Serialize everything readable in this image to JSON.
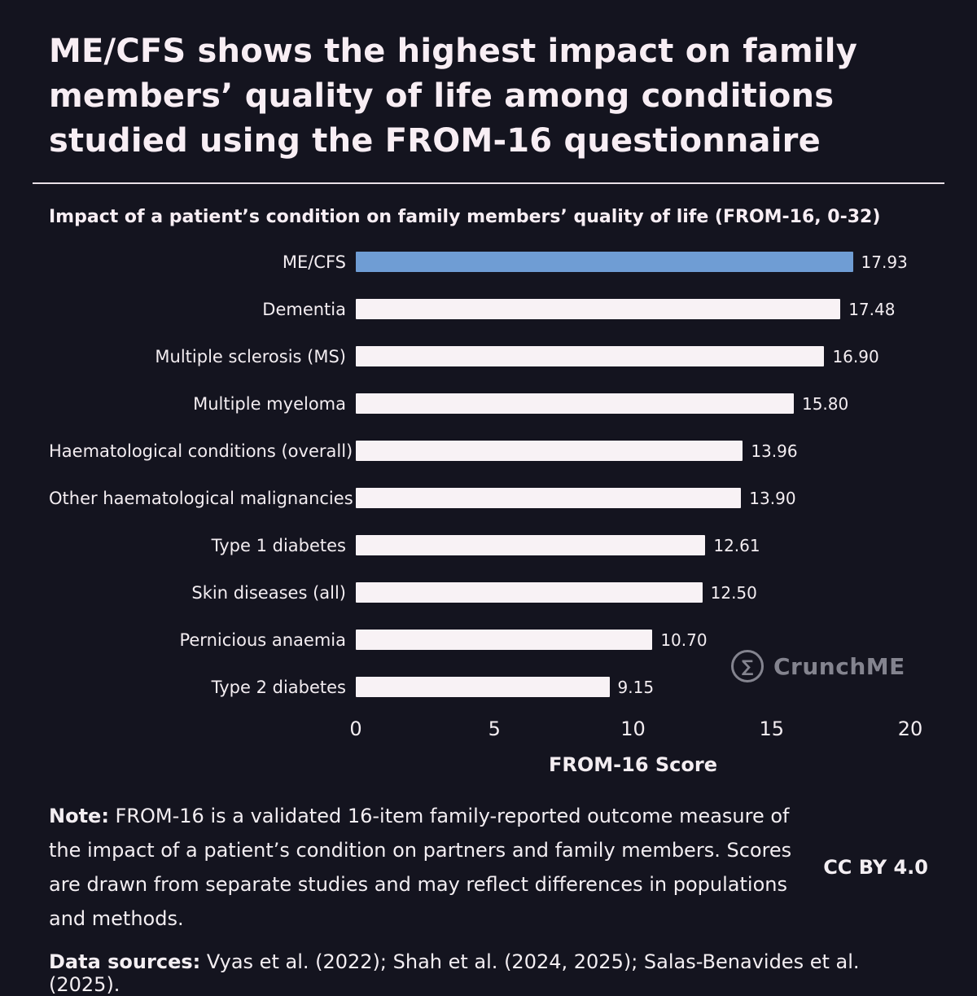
{
  "page": {
    "title_lines": [
      "ME/CFS shows the highest impact on family",
      "members’ quality of life among conditions",
      "studied using the FROM-16 questionnaire"
    ]
  },
  "chart_data": {
    "type": "bar",
    "orientation": "horizontal",
    "title": "Impact of a patient’s condition on family members’ quality of life (FROM-16, 0-32)",
    "categories": [
      "ME/CFS",
      "Dementia",
      "Multiple sclerosis (MS)",
      "Multiple myeloma",
      "Haematological conditions (overall)",
      "Other haematological malignancies",
      "Type 1 diabetes",
      "Skin diseases (all)",
      "Pernicious anaemia",
      "Type 2 diabetes"
    ],
    "values": [
      17.93,
      17.48,
      16.9,
      15.8,
      13.96,
      13.9,
      12.61,
      12.5,
      10.7,
      9.15
    ],
    "xlabel": "FROM-16 Score",
    "xlim": [
      0,
      20
    ],
    "xticks": [
      0,
      5,
      10,
      15,
      20
    ],
    "highlight_index": 0,
    "bar_color_default": "#f8f2f5",
    "bar_color_highlight": "#6f9dd4",
    "grid": false,
    "legend": "none"
  },
  "watermark": {
    "icon": "sigma-icon",
    "icon_glyph": "∑",
    "brand": "CrunchME"
  },
  "footer": {
    "note_label": "Note:",
    "note_text": " FROM-16 is a validated 16-item family-reported outcome measure of the impact of a patient’s condition on partners and family members. Scores are drawn from separate studies and may reflect differences in populations and methods.",
    "license": "CC BY 4.0",
    "sources_label": "Data sources:",
    "sources_text": " Vyas et al. (2022); Shah et al. (2024, 2025); Salas-Benavides et al. (2025)."
  }
}
